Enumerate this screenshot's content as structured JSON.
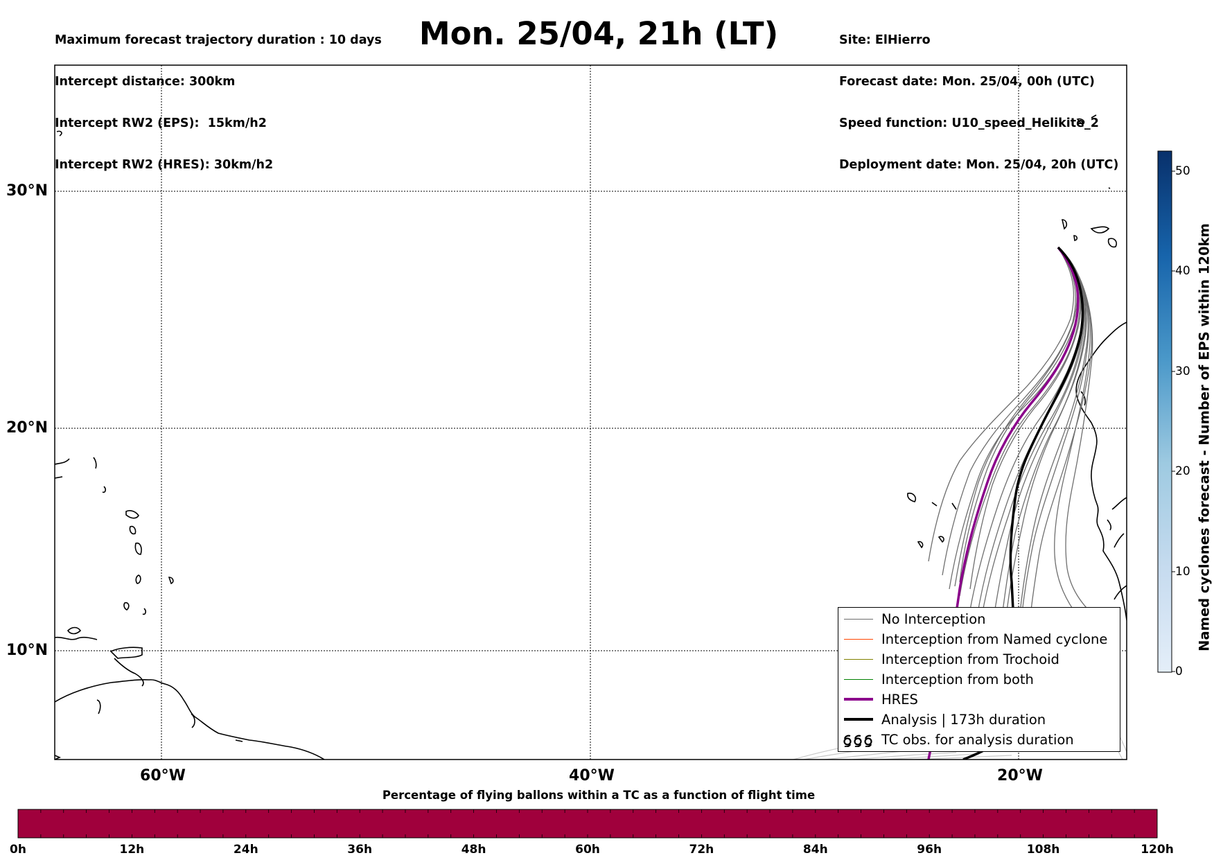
{
  "header": {
    "left_lines": [
      "Maximum forecast trajectory duration : 10 days",
      "Intercept distance: 300km",
      "Intercept RW2 (EPS):  15km/h2",
      "Intercept RW2 (HRES): 30km/h2"
    ],
    "title": "Mon. 25/04, 21h (LT)",
    "right_lines": [
      "Site: ElHierro",
      "Forecast date: Mon. 25/04, 00h (UTC)",
      "Speed function: U10_speed_Helikite_2",
      "Deployment date: Mon. 25/04, 20h (UTC)"
    ]
  },
  "map": {
    "lat_labels": [
      "30°N",
      "20°N",
      "10°N"
    ],
    "lon_labels": [
      "60°W",
      "40°W",
      "20°W"
    ],
    "colors": {
      "eps_trajectory": "#6e6e6e",
      "hres": "#8b008b",
      "analysis": "#000000",
      "late_trajectory": "#c8c8c8"
    }
  },
  "legend": {
    "items": [
      {
        "label": "No Interception",
        "color": "#6e6e6e"
      },
      {
        "label": "Interception from Named cyclone",
        "color": "#ff4500"
      },
      {
        "label": "Interception from Trochoid",
        "color": "#808000"
      },
      {
        "label": "Interception from both",
        "color": "#008000"
      },
      {
        "label": "HRES",
        "color": "#8b008b"
      },
      {
        "label": "Analysis | 173h duration",
        "color": "#000000"
      },
      {
        "label": "TC obs. for analysis duration",
        "icon": "cyclone-symbol-icon"
      }
    ]
  },
  "colorbar": {
    "label": "Named cyclones forecast - Number of EPS within 120km",
    "ticks": [
      "0",
      "10",
      "20",
      "30",
      "40",
      "50"
    ],
    "range": [
      0,
      52
    ],
    "color_low": "#e4eef9",
    "color_high": "#08306b"
  },
  "time_bar": {
    "title": "Percentage of flying ballons within a TC as a function of flight time",
    "ticks": [
      "0h",
      "12h",
      "24h",
      "36h",
      "48h",
      "60h",
      "72h",
      "84h",
      "96h",
      "108h",
      "120h"
    ],
    "fill_color": "#a0003c"
  }
}
